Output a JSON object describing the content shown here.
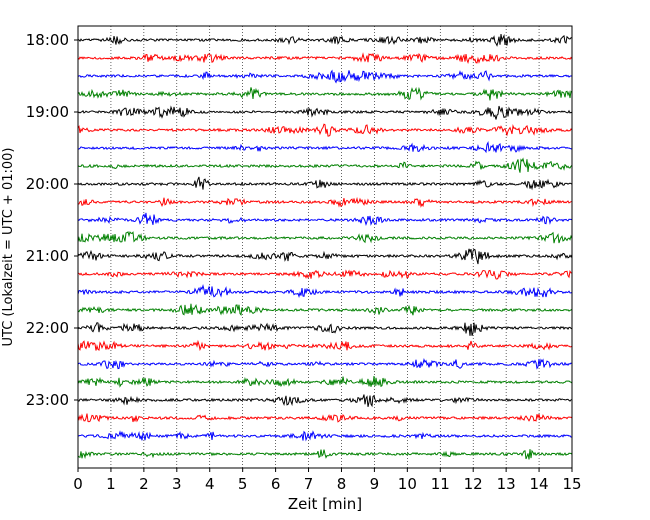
{
  "chart_data": {
    "type": "line",
    "title": "",
    "xlabel": "Zeit  [min]",
    "ylabel": "UTC (Lokalzeit = UTC + 01:00)",
    "xlim": [
      0,
      15
    ],
    "x_ticks": [
      "0",
      "1",
      "2",
      "3",
      "4",
      "5",
      "6",
      "7",
      "8",
      "9",
      "10",
      "11",
      "12",
      "13",
      "14",
      "15"
    ],
    "y_tick_labels": [
      "18:00",
      "19:00",
      "20:00",
      "21:00",
      "22:00",
      "23:00"
    ],
    "trace_start_times": [
      "18:00",
      "18:15",
      "18:30",
      "18:45",
      "19:00",
      "19:15",
      "19:30",
      "19:45",
      "20:00",
      "20:15",
      "20:30",
      "20:45",
      "21:00",
      "21:15",
      "21:30",
      "21:45",
      "22:00",
      "22:15",
      "22:30",
      "22:45",
      "23:00",
      "23:15",
      "23:30",
      "23:45"
    ],
    "trace_colors": [
      "#000000",
      "#ff0000",
      "#0000ff",
      "#008000"
    ],
    "vertical_grid": "dotted",
    "legend": "none"
  }
}
